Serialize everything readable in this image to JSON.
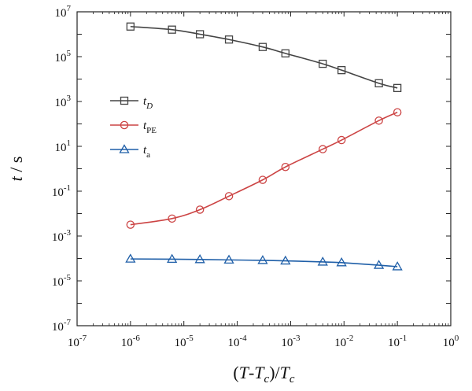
{
  "chart_data": {
    "type": "line",
    "title": "",
    "x_scale": "log",
    "y_scale": "log",
    "xlim": [
      1e-07,
      1
    ],
    "ylim": [
      1e-07,
      10000000.0
    ],
    "xlabel": {
      "var": "T",
      "minus": "-",
      "sub_var": "T",
      "sub": "c",
      "slash": ")/",
      "denom": "T",
      "denom_sub": "c",
      "open": "("
    },
    "ylabel": {
      "var": "t",
      "unit": " / s"
    },
    "x_ticks": [
      {
        "base": "10",
        "exp": "-7"
      },
      {
        "base": "10",
        "exp": "-6"
      },
      {
        "base": "10",
        "exp": "-5"
      },
      {
        "base": "10",
        "exp": "-4"
      },
      {
        "base": "10",
        "exp": "-3"
      },
      {
        "base": "10",
        "exp": "-2"
      },
      {
        "base": "10",
        "exp": "-1"
      },
      {
        "base": "10",
        "exp": "0"
      }
    ],
    "y_ticks": [
      {
        "base": "10",
        "exp": "7"
      },
      {
        "base": "10",
        "exp": "5"
      },
      {
        "base": "10",
        "exp": "3"
      },
      {
        "base": "10",
        "exp": "1"
      },
      {
        "base": "10",
        "exp": "-1"
      },
      {
        "base": "10",
        "exp": "-3"
      },
      {
        "base": "10",
        "exp": "-5"
      },
      {
        "base": "10",
        "exp": "-7"
      }
    ],
    "legend_position": "upper-left",
    "series": [
      {
        "name": "t_D",
        "label_main": "t",
        "label_sub": "D",
        "sub_italic": true,
        "color": "#444444",
        "marker": "square",
        "x": [
          1e-06,
          6e-06,
          2e-05,
          7e-05,
          0.0003,
          0.0008,
          0.004,
          0.009,
          0.045,
          0.1
        ],
        "y": [
          2200000.0,
          1600000.0,
          1000000.0,
          580000.0,
          270000.0,
          140000.0,
          48000.0,
          25000.0,
          6500.0,
          4000.0
        ]
      },
      {
        "name": "t_PE",
        "label_main": "t",
        "label_sub": "PE",
        "sub_italic": false,
        "color": "#cc4444",
        "marker": "circle",
        "x": [
          1e-06,
          6e-06,
          2e-05,
          7e-05,
          0.0003,
          0.0008,
          0.004,
          0.009,
          0.045,
          0.1
        ],
        "y": [
          0.0032,
          0.006,
          0.015,
          0.06,
          0.32,
          1.2,
          7.5,
          19,
          140,
          330
        ]
      },
      {
        "name": "t_a",
        "label_main": "t",
        "label_sub": "a",
        "sub_italic": false,
        "color": "#1f5fa8",
        "marker": "triangle",
        "x": [
          1e-06,
          6e-06,
          2e-05,
          7e-05,
          0.0003,
          0.0008,
          0.004,
          0.009,
          0.045,
          0.1
        ],
        "y": [
          9.5e-05,
          9.3e-05,
          9e-05,
          8.6e-05,
          8.2e-05,
          7.8e-05,
          7e-05,
          6.5e-05,
          5e-05,
          4.3e-05
        ]
      }
    ]
  }
}
